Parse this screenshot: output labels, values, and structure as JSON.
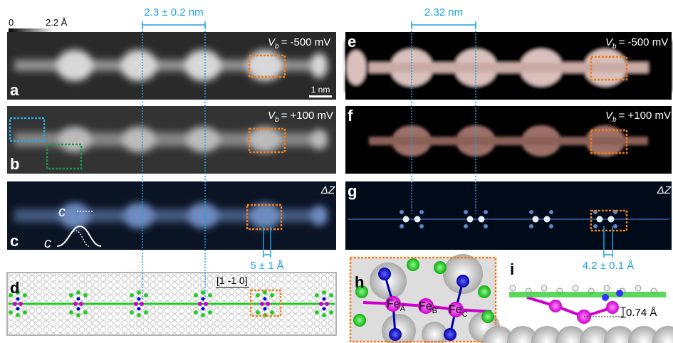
{
  "colorbar": {
    "min": "0",
    "max": "2.2 Å"
  },
  "measurements": {
    "left_period": "2.3 ± 0.2 nm",
    "right_period": "2.32 nm",
    "left_split": "5 ± 1 Å",
    "right_split": "4.2 ± 0.1 Å",
    "height": "0.74 Å"
  },
  "panels": {
    "a": {
      "label": "a",
      "bias_var": "V",
      "bias_sub": "b",
      "bias": "= -500 mV",
      "scale_bar": "1 nm"
    },
    "b": {
      "label": "b",
      "bias_var": "V",
      "bias_sub": "b",
      "bias": "= +100 mV"
    },
    "c": {
      "label": "c",
      "mode": "ΔZ",
      "site_upper": "c",
      "site_lower": "c"
    },
    "d": {
      "label": "d",
      "direction": "[1 -1 0]"
    },
    "e": {
      "label": "e",
      "bias_var": "V",
      "bias_sub": "b",
      "bias": "= -500 mV"
    },
    "f": {
      "label": "f",
      "bias_var": "V",
      "bias_sub": "b",
      "bias": "= +100 mV"
    },
    "g": {
      "label": "g",
      "mode": "ΔZ"
    },
    "h": {
      "label": "h",
      "atoms": [
        {
          "element": "Fe",
          "site": "A"
        },
        {
          "element": "Fe",
          "site": "B"
        },
        {
          "element": "Fe",
          "site": "C"
        }
      ]
    },
    "i": {
      "label": "i"
    }
  }
}
